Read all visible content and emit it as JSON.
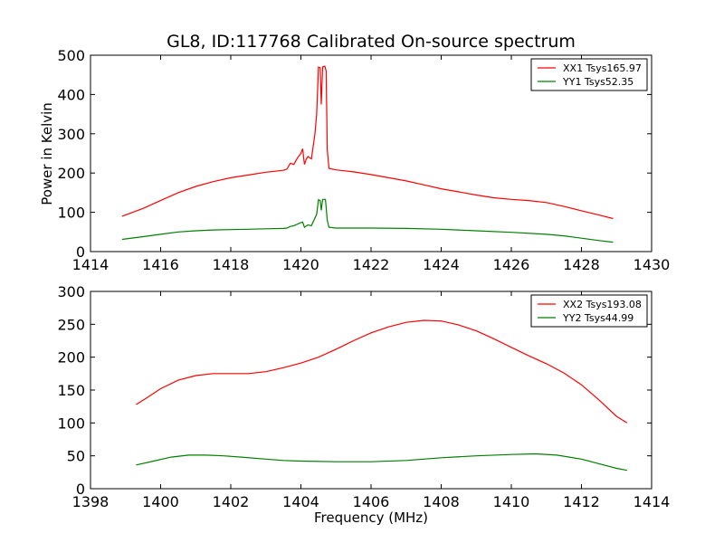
{
  "figure": {
    "title": "GL8, ID:117768 Calibrated On-source spectrum",
    "xlabel": "Frequency (MHz)",
    "ylabel": "Power in Kelvin"
  },
  "chart_data": [
    {
      "type": "line",
      "title": "GL8, ID:117768 Calibrated On-source spectrum",
      "xlabel": "",
      "ylabel": "Power in Kelvin",
      "xlim": [
        1414,
        1430
      ],
      "ylim": [
        0,
        500
      ],
      "xticks": [
        1414,
        1416,
        1418,
        1420,
        1422,
        1424,
        1426,
        1428,
        1430
      ],
      "yticks": [
        0,
        100,
        200,
        300,
        400,
        500
      ],
      "legend": "top-right",
      "series": [
        {
          "name": "XX1 Tsys165.97",
          "color": "#ff0000",
          "points": [
            [
              1414.9,
              90
            ],
            [
              1415.5,
              110
            ],
            [
              1416.0,
              130
            ],
            [
              1416.5,
              150
            ],
            [
              1417.0,
              166
            ],
            [
              1417.5,
              178
            ],
            [
              1418.0,
              188
            ],
            [
              1418.5,
              195
            ],
            [
              1419.0,
              202
            ],
            [
              1419.5,
              207
            ],
            [
              1419.6,
              210
            ],
            [
              1419.7,
              225
            ],
            [
              1419.8,
              222
            ],
            [
              1419.9,
              238
            ],
            [
              1420.0,
              250
            ],
            [
              1420.05,
              262
            ],
            [
              1420.1,
              222
            ],
            [
              1420.15,
              235
            ],
            [
              1420.2,
              242
            ],
            [
              1420.3,
              236
            ],
            [
              1420.4,
              300
            ],
            [
              1420.45,
              350
            ],
            [
              1420.5,
              470
            ],
            [
              1420.55,
              468
            ],
            [
              1420.58,
              375
            ],
            [
              1420.62,
              470
            ],
            [
              1420.68,
              472
            ],
            [
              1420.72,
              460
            ],
            [
              1420.75,
              260
            ],
            [
              1420.8,
              212
            ],
            [
              1421.0,
              208
            ],
            [
              1421.5,
              203
            ],
            [
              1422.0,
              196
            ],
            [
              1422.5,
              188
            ],
            [
              1423.0,
              180
            ],
            [
              1423.5,
              170
            ],
            [
              1424.0,
              160
            ],
            [
              1424.5,
              152
            ],
            [
              1425.0,
              144
            ],
            [
              1425.5,
              137
            ],
            [
              1426.0,
              133
            ],
            [
              1426.5,
              130
            ],
            [
              1427.0,
              125
            ],
            [
              1427.5,
              115
            ],
            [
              1428.0,
              104
            ],
            [
              1428.5,
              93
            ],
            [
              1428.9,
              84
            ]
          ]
        },
        {
          "name": "YY1 Tsys52.35",
          "color": "#008000",
          "points": [
            [
              1414.9,
              31
            ],
            [
              1415.5,
              38
            ],
            [
              1416.0,
              44
            ],
            [
              1416.5,
              50
            ],
            [
              1417.0,
              53
            ],
            [
              1417.5,
              55
            ],
            [
              1418.0,
              56
            ],
            [
              1418.5,
              57
            ],
            [
              1419.0,
              58
            ],
            [
              1419.5,
              59
            ],
            [
              1419.6,
              60
            ],
            [
              1419.7,
              64
            ],
            [
              1419.8,
              66
            ],
            [
              1420.0,
              74
            ],
            [
              1420.05,
              75
            ],
            [
              1420.1,
              62
            ],
            [
              1420.2,
              68
            ],
            [
              1420.3,
              66
            ],
            [
              1420.45,
              95
            ],
            [
              1420.5,
              132
            ],
            [
              1420.55,
              130
            ],
            [
              1420.58,
              105
            ],
            [
              1420.62,
              133
            ],
            [
              1420.7,
              133
            ],
            [
              1420.75,
              80
            ],
            [
              1420.8,
              62
            ],
            [
              1421.0,
              60
            ],
            [
              1422.0,
              60
            ],
            [
              1423.0,
              59
            ],
            [
              1424.0,
              57
            ],
            [
              1425.0,
              53
            ],
            [
              1426.0,
              49
            ],
            [
              1427.0,
              44
            ],
            [
              1427.5,
              40
            ],
            [
              1428.0,
              34
            ],
            [
              1428.5,
              28
            ],
            [
              1428.9,
              24
            ]
          ]
        }
      ]
    },
    {
      "type": "line",
      "title": "",
      "xlabel": "Frequency (MHz)",
      "ylabel": "",
      "xlim": [
        1398,
        1414
      ],
      "ylim": [
        0,
        300
      ],
      "xticks": [
        1398,
        1400,
        1402,
        1404,
        1406,
        1408,
        1410,
        1412,
        1414
      ],
      "yticks": [
        0,
        50,
        100,
        150,
        200,
        250,
        300
      ],
      "legend": "top-right",
      "series": [
        {
          "name": "XX2 Tsys193.08",
          "color": "#ff0000",
          "points": [
            [
              1399.3,
              128
            ],
            [
              1399.6,
              138
            ],
            [
              1400.0,
              152
            ],
            [
              1400.5,
              165
            ],
            [
              1401.0,
              172
            ],
            [
              1401.5,
              175
            ],
            [
              1402.0,
              175
            ],
            [
              1402.5,
              175
            ],
            [
              1403.0,
              178
            ],
            [
              1403.5,
              184
            ],
            [
              1404.0,
              191
            ],
            [
              1404.5,
              200
            ],
            [
              1405.0,
              212
            ],
            [
              1405.5,
              225
            ],
            [
              1406.0,
              237
            ],
            [
              1406.5,
              246
            ],
            [
              1407.0,
              253
            ],
            [
              1407.5,
              256
            ],
            [
              1408.0,
              255
            ],
            [
              1408.5,
              249
            ],
            [
              1409.0,
              240
            ],
            [
              1409.5,
              228
            ],
            [
              1410.0,
              215
            ],
            [
              1410.5,
              202
            ],
            [
              1411.0,
              190
            ],
            [
              1411.5,
              176
            ],
            [
              1412.0,
              158
            ],
            [
              1412.5,
              135
            ],
            [
              1413.0,
              110
            ],
            [
              1413.3,
              100
            ]
          ]
        },
        {
          "name": "YY2 Tsys44.99",
          "color": "#008000",
          "points": [
            [
              1399.3,
              36
            ],
            [
              1399.8,
              42
            ],
            [
              1400.3,
              48
            ],
            [
              1400.8,
              51
            ],
            [
              1401.3,
              51
            ],
            [
              1401.8,
              50
            ],
            [
              1402.3,
              48
            ],
            [
              1403.0,
              45
            ],
            [
              1403.5,
              43
            ],
            [
              1404.0,
              42
            ],
            [
              1405.0,
              41
            ],
            [
              1406.0,
              41
            ],
            [
              1407.0,
              43
            ],
            [
              1408.0,
              47
            ],
            [
              1409.0,
              50
            ],
            [
              1410.0,
              52
            ],
            [
              1410.7,
              53
            ],
            [
              1411.3,
              51
            ],
            [
              1412.0,
              45
            ],
            [
              1412.5,
              38
            ],
            [
              1413.0,
              31
            ],
            [
              1413.3,
              28
            ]
          ]
        }
      ]
    }
  ]
}
